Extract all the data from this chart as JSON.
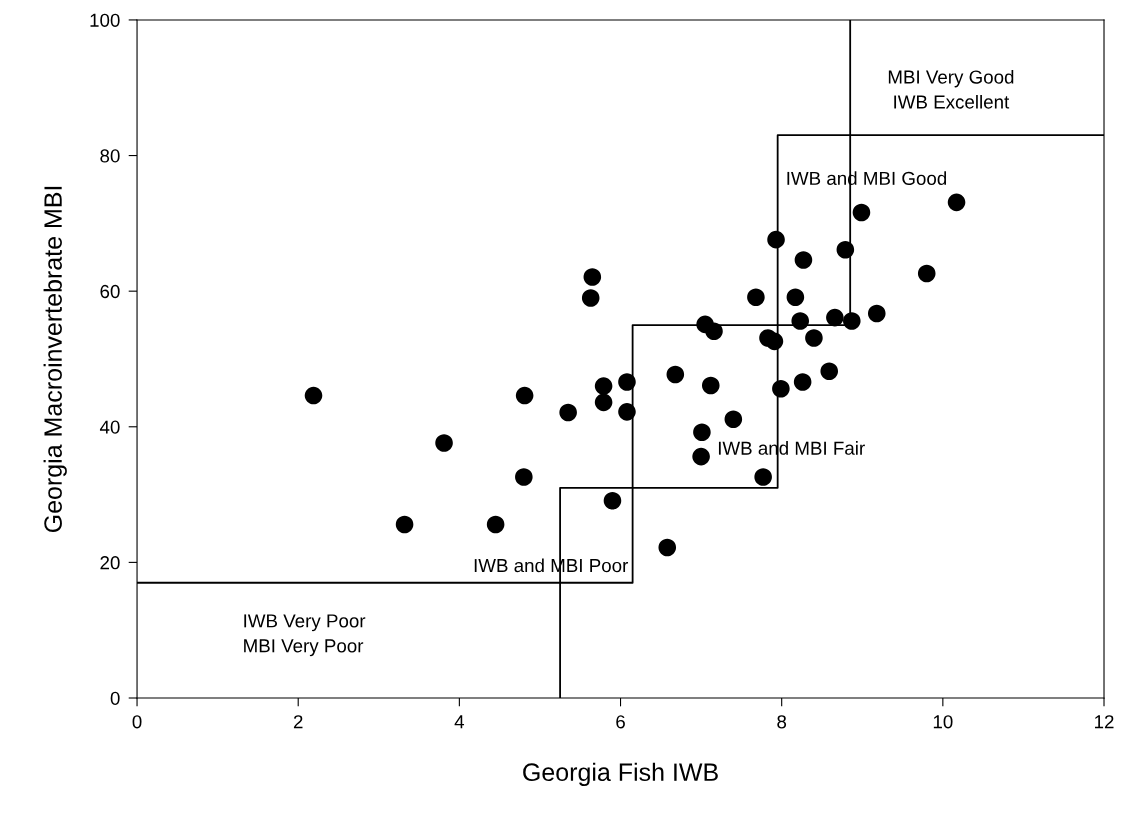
{
  "chart_data": {
    "type": "scatter",
    "xlabel": "Georgia Fish IWB",
    "ylabel": "Georgia Macroinvertebrate MBI",
    "xlim": [
      0,
      12
    ],
    "ylim": [
      0,
      100
    ],
    "xticks": [
      0,
      2,
      4,
      6,
      8,
      10,
      12
    ],
    "yticks": [
      0,
      20,
      40,
      60,
      80,
      100
    ],
    "grid": false,
    "legend": false,
    "marker": "circle",
    "series": [
      {
        "color": "#000000",
        "x": [
          2.19,
          5.65,
          5.63,
          4.81,
          5.35,
          5.79,
          5.79,
          3.81,
          4.8,
          5.9,
          3.32,
          4.45,
          6.08,
          6.08,
          6.68,
          7.05,
          7.16,
          7.12,
          7.4,
          7.01,
          7.0,
          7.77,
          6.58,
          7.93,
          8.27,
          8.79,
          8.99,
          10.17,
          9.8,
          7.68,
          8.17,
          8.23,
          8.66,
          8.87,
          9.18,
          7.83,
          7.91,
          8.4,
          8.59,
          8.26,
          7.99
        ],
        "values": [
          44.6,
          62.1,
          59.0,
          44.6,
          42.1,
          46.0,
          43.6,
          37.6,
          32.6,
          29.1,
          25.6,
          25.6,
          46.6,
          42.2,
          47.7,
          55.1,
          54.1,
          46.1,
          41.1,
          39.2,
          35.6,
          32.6,
          22.2,
          67.6,
          64.6,
          66.1,
          71.6,
          73.1,
          62.6,
          59.1,
          59.1,
          55.6,
          56.1,
          55.6,
          56.7,
          53.1,
          52.6,
          53.1,
          48.2,
          46.6,
          45.6
        ]
      },
      {
        "type": "line",
        "color": "#000000",
        "marker": "none",
        "x": [
          0,
          6.15,
          6.15,
          8.85,
          8.85
        ],
        "values": [
          17,
          17,
          55,
          55,
          100
        ]
      },
      {
        "type": "line",
        "color": "#000000",
        "marker": "none",
        "x": [
          5.25,
          5.25,
          7.95,
          7.95,
          12
        ],
        "values": [
          0,
          31,
          31,
          83,
          83
        ]
      }
    ],
    "annotations": [
      "MBI Very Good\nIWB Excellent",
      "IWB and MBI Good",
      "IWB and MBI Fair",
      "IWB and MBI Poor",
      "IWB Very Poor\nMBI Very Poor"
    ]
  }
}
